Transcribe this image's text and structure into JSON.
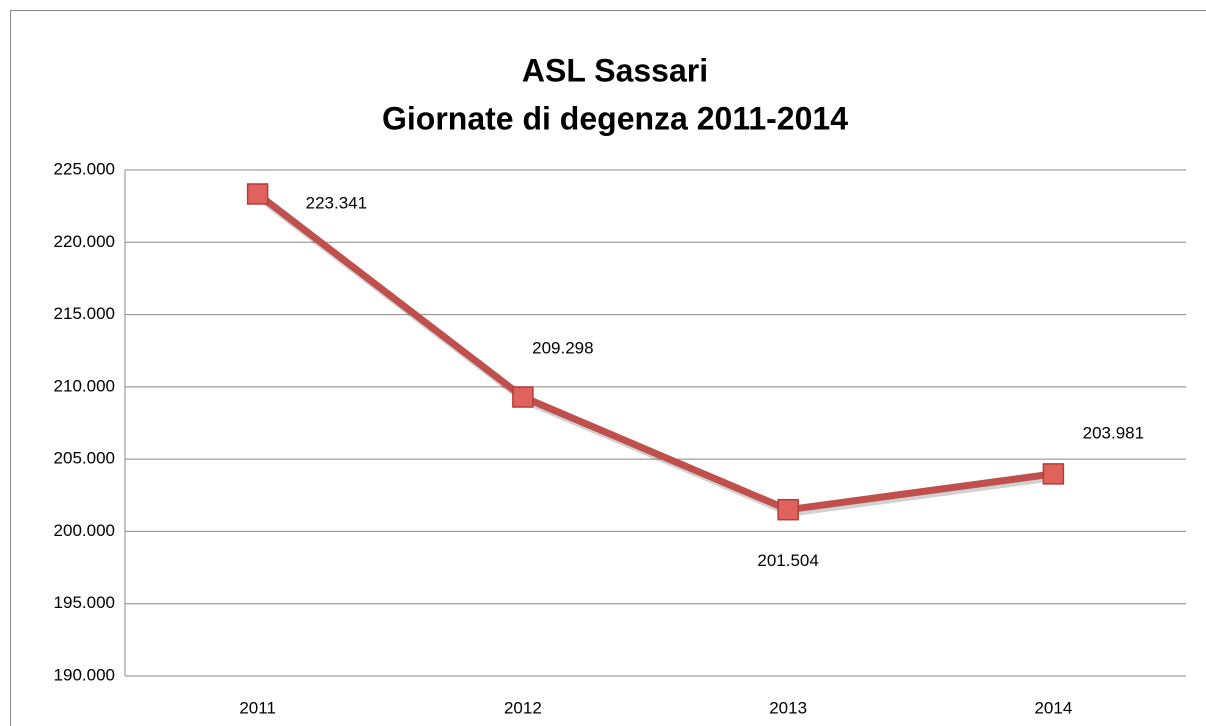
{
  "chart_data": {
    "type": "line",
    "title": [
      "ASL Sassari",
      "Giornate di degenza 2011-2014"
    ],
    "categories": [
      "2011",
      "2012",
      "2013",
      "2014"
    ],
    "series": [
      {
        "color": "#c0504d",
        "values": [
          223341,
          209298,
          201504,
          203981
        ],
        "value_labels": [
          "223.341",
          "209.298",
          "201.504",
          "203.981"
        ]
      }
    ],
    "ylim": [
      190000,
      225000
    ],
    "yticks": [
      {
        "value": 190000,
        "label": "190.000"
      },
      {
        "value": 195000,
        "label": "195.000"
      },
      {
        "value": 200000,
        "label": "200.000"
      },
      {
        "value": 205000,
        "label": "205.000"
      },
      {
        "value": 210000,
        "label": "210.000"
      },
      {
        "value": 215000,
        "label": "215.000"
      },
      {
        "value": 220000,
        "label": "220.000"
      },
      {
        "value": 225000,
        "label": "225.000"
      }
    ],
    "grid": true
  }
}
